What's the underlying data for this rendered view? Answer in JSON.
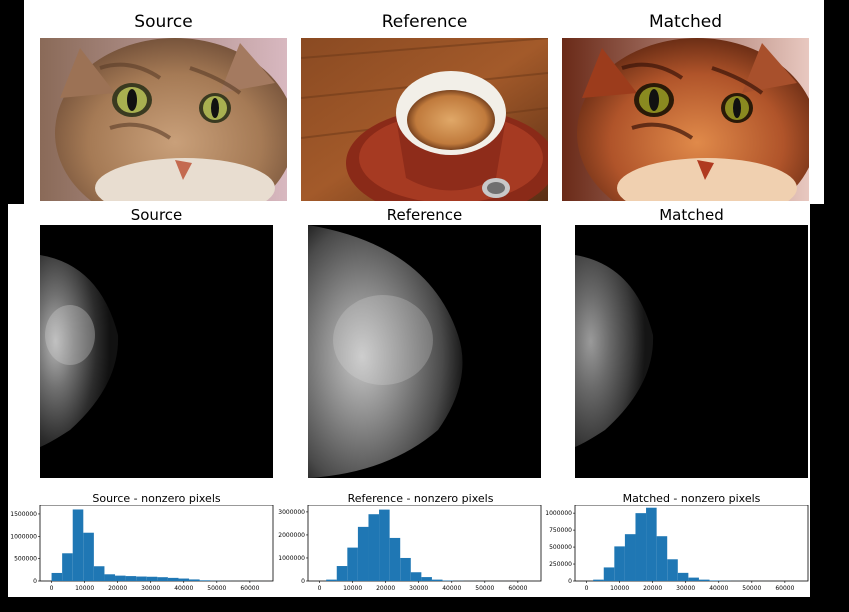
{
  "top_row": {
    "titles": [
      "Source",
      "Reference",
      "Matched"
    ]
  },
  "middle_row": {
    "titles": [
      "Source",
      "Reference",
      "Matched"
    ]
  },
  "histograms": [
    {
      "title": "Source - nonzero pixels",
      "y_ticks": [
        "1500000",
        "1000000",
        "500000",
        "0"
      ],
      "x_ticks": [
        "0",
        "10000",
        "20000",
        "30000",
        "40000",
        "50000",
        "60000"
      ]
    },
    {
      "title": "Reference - nonzero pixels",
      "y_ticks": [
        "3000000",
        "2000000",
        "1000000",
        "0"
      ],
      "x_ticks": [
        "0",
        "10000",
        "20000",
        "30000",
        "40000",
        "50000",
        "60000"
      ]
    },
    {
      "title": "Matched - nonzero pixels",
      "y_ticks": [
        "1000000",
        "750000",
        "500000",
        "250000",
        "0"
      ],
      "x_ticks": [
        "0",
        "10000",
        "20000",
        "30000",
        "40000",
        "50000",
        "60000"
      ]
    }
  ],
  "chart_data": [
    {
      "type": "bar",
      "title": "Source - nonzero pixels",
      "ylim": [
        0,
        1700000
      ],
      "xlim": [
        -3500,
        67000
      ],
      "bin_edges": [
        0,
        3200,
        6400,
        9600,
        12800,
        16000,
        19200,
        22400,
        25600,
        28800,
        32000,
        35200,
        38400,
        41600,
        44800,
        48000,
        51200,
        54400,
        57600,
        60800,
        64000
      ],
      "values": [
        180000,
        620000,
        1600000,
        1080000,
        330000,
        150000,
        120000,
        110000,
        100000,
        95000,
        85000,
        70000,
        55000,
        35000,
        15000,
        5000,
        2000,
        1000,
        500,
        300
      ]
    },
    {
      "type": "bar",
      "title": "Reference - nonzero pixels",
      "ylim": [
        0,
        3300000
      ],
      "xlim": [
        -3500,
        67000
      ],
      "bin_edges": [
        2000,
        5200,
        8400,
        11600,
        14800,
        18000,
        21200,
        24400,
        27600,
        30800,
        34000,
        37200,
        40400,
        43600,
        46800,
        50000,
        53200,
        56400,
        59600,
        62800,
        66000
      ],
      "values": [
        60000,
        650000,
        1450000,
        2350000,
        2900000,
        3100000,
        1870000,
        1000000,
        380000,
        170000,
        60000,
        20000,
        8000,
        3000,
        1000,
        500,
        300,
        200,
        100,
        50
      ]
    },
    {
      "type": "bar",
      "title": "Matched - nonzero pixels",
      "ylim": [
        0,
        1120000
      ],
      "xlim": [
        -3500,
        67000
      ],
      "bin_edges": [
        2000,
        5200,
        8400,
        11600,
        14800,
        18000,
        21200,
        24400,
        27600,
        30800,
        34000,
        37200,
        40400,
        43600,
        46800,
        50000,
        53200,
        56400,
        59600,
        62800,
        66000
      ],
      "values": [
        20000,
        200000,
        510000,
        690000,
        1000000,
        1080000,
        660000,
        320000,
        120000,
        50000,
        20000,
        8000,
        3000,
        1000,
        500,
        200,
        100,
        50,
        20,
        10
      ]
    }
  ]
}
